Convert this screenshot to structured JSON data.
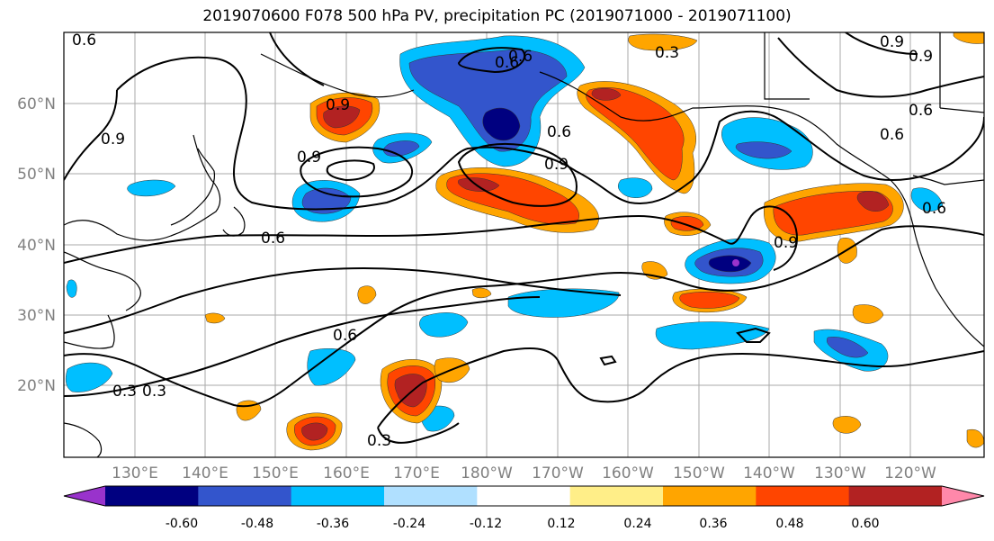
{
  "title": "2019070600 F078 500 hPa PV, precipitation PC (2019071000 - 2019071100)",
  "lat_labels": [
    "60°N",
    "50°N",
    "40°N",
    "30°N",
    "20°N"
  ],
  "lon_labels": [
    "130°E",
    "140°E",
    "150°E",
    "160°E",
    "170°E",
    "180°W",
    "170°W",
    "160°W",
    "150°W",
    "140°W",
    "130°W",
    "120°W"
  ],
  "contour_labels": [
    "0.6",
    "0.9",
    "0.6",
    "0.9",
    "0.9",
    "0.6",
    "0.3",
    "0.9",
    "0.9",
    "0.6",
    "0.6",
    "0.9",
    "0.6",
    "0.6",
    "0.6",
    "0.3",
    "0.3",
    "0.3",
    "0.6",
    "0.9"
  ],
  "colorbar": {
    "colors": [
      "#9933cc",
      "#000080",
      "#3355cc",
      "#00bfff",
      "#b0e0ff",
      "#ffffff",
      "#ffee88",
      "#ffa500",
      "#ff4500",
      "#b22222",
      "#ff88aa"
    ],
    "tick_labels": [
      "-0.60",
      "-0.48",
      "-0.36",
      "-0.24",
      "-0.12",
      "0.12",
      "0.24",
      "0.36",
      "0.48",
      "0.60"
    ]
  }
}
